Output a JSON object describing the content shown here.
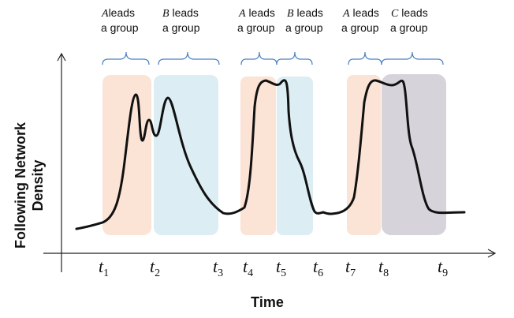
{
  "axes": {
    "y_title_line1": "Following Network",
    "y_title_line2": "Density",
    "x_title": "Time"
  },
  "time_marks": [
    {
      "base": "t",
      "sub": "1"
    },
    {
      "base": "t",
      "sub": "2"
    },
    {
      "base": "t",
      "sub": "3"
    },
    {
      "base": "t",
      "sub": "4"
    },
    {
      "base": "t",
      "sub": "5"
    },
    {
      "base": "t",
      "sub": "6"
    },
    {
      "base": "t",
      "sub": "7"
    },
    {
      "base": "t",
      "sub": "8"
    },
    {
      "base": "t",
      "sub": "9"
    }
  ],
  "leader_annotations": [
    {
      "leader": "A",
      "text_line1": "leads",
      "text_line2": "a group"
    },
    {
      "leader": "B",
      "text_line1": "leads",
      "text_line2": "a group"
    },
    {
      "leader": "A",
      "text_line1": "leads",
      "text_line2": "a group"
    },
    {
      "leader": "B",
      "text_line1": "leads",
      "text_line2": "a group"
    },
    {
      "leader": "A",
      "text_line1": "leads",
      "text_line2": "a group"
    },
    {
      "leader": "C",
      "text_line1": "leads",
      "text_line2": "a group"
    }
  ],
  "colors": {
    "A": "#fbe3d6",
    "B": "#dcedf4",
    "C": "#d6d3da",
    "curve": "#111111",
    "brace": "#4a7fc1",
    "axis": "#222222"
  }
}
